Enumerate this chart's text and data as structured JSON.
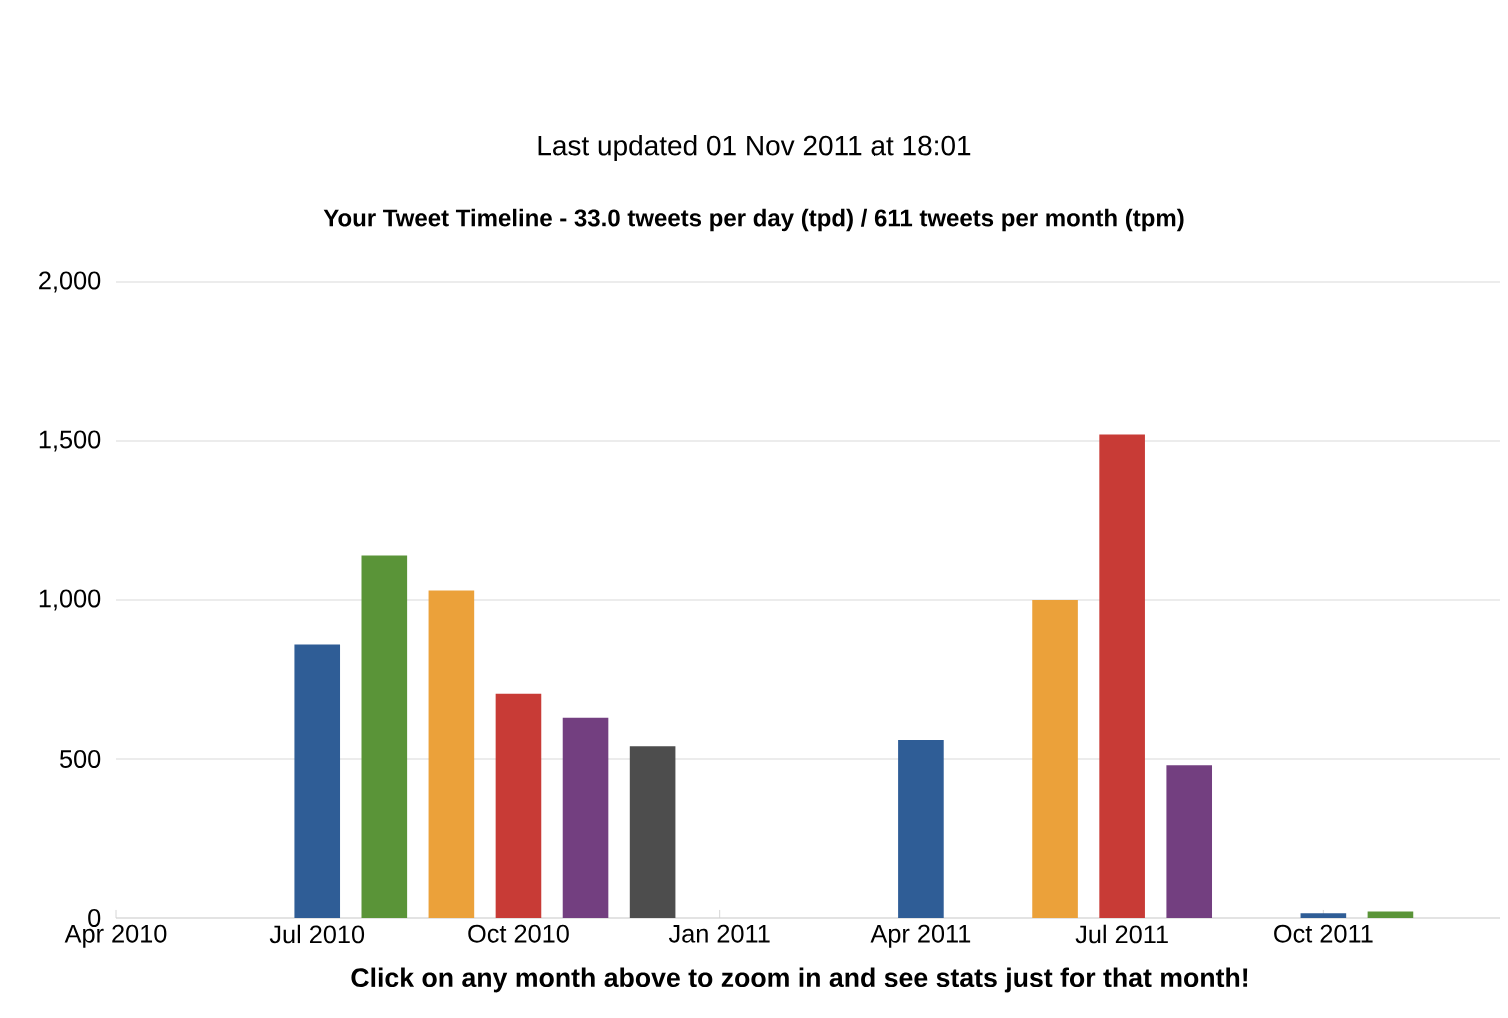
{
  "chart_data": {
    "type": "bar",
    "title": "Your Tweet Timeline - 33.0 tweets per day (tpd) / 611 tweets per month (tpm)",
    "subtitle": "Last updated 01 Nov 2011 at 18:01",
    "annotations": [
      "Click on any month above to zoom in and see stats just for that month!"
    ],
    "x": [
      "2010-07",
      "2010-08",
      "2010-09",
      "2010-10",
      "2010-11",
      "2010-12",
      "2011-04",
      "2011-06",
      "2011-07",
      "2011-08",
      "2011-10",
      "2011-11"
    ],
    "values": [
      860,
      1140,
      1030,
      705,
      630,
      540,
      560,
      1000,
      1520,
      480,
      15,
      20
    ],
    "colors": [
      "#2f5d96",
      "#5a9438",
      "#eba13a",
      "#c83b36",
      "#733f80",
      "#4d4d4d",
      "#2f5d96",
      "#eba13a",
      "#c83b36",
      "#733f80",
      "#2f5d96",
      "#5a9438"
    ],
    "xlim": [
      "2010-04",
      "2011-12-20"
    ],
    "xticks": [
      {
        "value": "2010-04",
        "label": "Apr 2010"
      },
      {
        "value": "2010-07",
        "label": "Jul 2010"
      },
      {
        "value": "2010-10",
        "label": "Oct 2010"
      },
      {
        "value": "2011-01",
        "label": "Jan 2011"
      },
      {
        "value": "2011-04",
        "label": "Apr 2011"
      },
      {
        "value": "2011-07",
        "label": "Jul 2011"
      },
      {
        "value": "2011-10",
        "label": "Oct 2011"
      }
    ],
    "ylim": [
      0,
      2000
    ],
    "yticks": [
      0,
      {
        "value": 500,
        "label": "500"
      },
      {
        "value": 1000,
        "label": "1,000"
      },
      {
        "value": 1500,
        "label": "1,500"
      },
      {
        "value": 2000,
        "label": "2,000"
      }
    ],
    "grid": "y"
  }
}
